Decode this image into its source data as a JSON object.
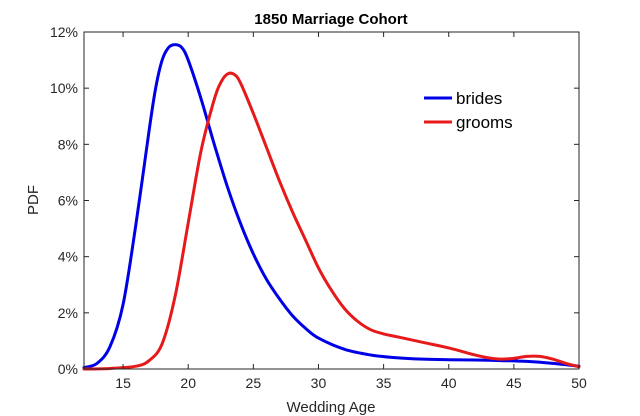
{
  "chart_data": {
    "type": "line",
    "title": "1850 Marriage Cohort",
    "xlabel": "Wedding Age",
    "ylabel": "PDF",
    "xlim": [
      12,
      50
    ],
    "ylim": [
      0,
      12
    ],
    "x_ticks": [
      15,
      20,
      25,
      30,
      35,
      40,
      45,
      50
    ],
    "y_ticks": [
      0,
      2,
      4,
      6,
      8,
      10,
      12
    ],
    "y_tick_labels": [
      "0%",
      "2%",
      "4%",
      "6%",
      "8%",
      "10%",
      "12%"
    ],
    "grid": false,
    "legend_position": "top-right",
    "series": [
      {
        "name": "brides",
        "color": "#0000e6",
        "x": [
          12,
          13,
          14,
          15,
          16,
          17,
          17.5,
          18,
          18.5,
          19,
          19.5,
          20,
          21,
          22,
          23,
          24,
          25,
          26,
          27,
          28,
          29,
          30,
          32,
          34,
          36,
          38,
          40,
          42,
          44,
          46,
          48,
          50
        ],
        "y": [
          0.05,
          0.2,
          0.8,
          2.3,
          5.2,
          8.5,
          10.0,
          11.0,
          11.45,
          11.55,
          11.45,
          11.0,
          9.6,
          8.0,
          6.5,
          5.2,
          4.1,
          3.2,
          2.5,
          1.9,
          1.45,
          1.1,
          0.7,
          0.5,
          0.4,
          0.35,
          0.33,
          0.32,
          0.3,
          0.27,
          0.2,
          0.1
        ]
      },
      {
        "name": "grooms",
        "color": "#e61a1a",
        "x": [
          12,
          14,
          16,
          17,
          18,
          19,
          20,
          21,
          22,
          22.5,
          23,
          23.5,
          24,
          25,
          26,
          27,
          28,
          29,
          30,
          31,
          32,
          33,
          34,
          35,
          36,
          38,
          40,
          42,
          43,
          44,
          45,
          46,
          47,
          48,
          49,
          50
        ],
        "y": [
          0,
          0.02,
          0.1,
          0.3,
          0.9,
          2.6,
          5.2,
          7.8,
          9.6,
          10.2,
          10.5,
          10.5,
          10.2,
          9.1,
          7.9,
          6.7,
          5.6,
          4.6,
          3.6,
          2.8,
          2.15,
          1.7,
          1.4,
          1.25,
          1.15,
          0.95,
          0.75,
          0.5,
          0.4,
          0.35,
          0.38,
          0.45,
          0.45,
          0.35,
          0.2,
          0.08
        ]
      }
    ]
  }
}
